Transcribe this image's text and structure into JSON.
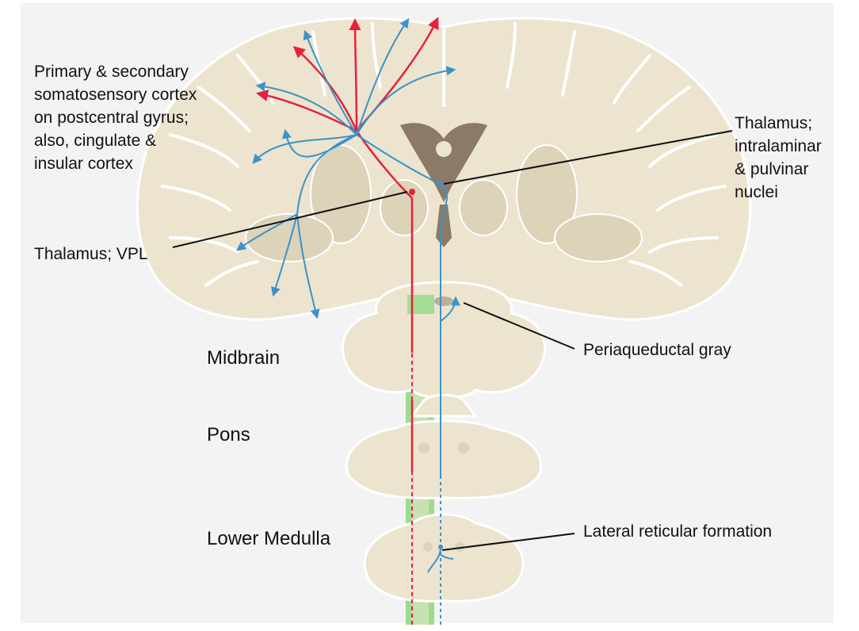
{
  "colors": {
    "background": "#f3f3f3",
    "tissue_fill": "#ece4cf",
    "tissue_outline": "#ffffff",
    "ventricle": "#8a7a67",
    "deep_nuclei": "#ddd3b9",
    "direct_pathway": "#e8203a",
    "indirect_pathway": "#3a93c8",
    "tract": "#9ddc8f",
    "leader_line": "#111111"
  },
  "labels": {
    "cortex": [
      "Primary & secondary",
      "somatosensory cortex",
      "on postcentral gyrus;",
      "also, cingulate &",
      "insular cortex"
    ],
    "thalamus_intralaminar": [
      "Thalamus;",
      "intralaminar",
      "& pulvinar",
      "nuclei"
    ],
    "thalamus_vpl": "Thalamus; VPL",
    "periaqueductal_gray": "Periaqueductal gray",
    "lateral_reticular_formation": "Lateral reticular formation",
    "midbrain": "Midbrain",
    "pons": "Pons",
    "lower_medulla": "Lower Medulla"
  }
}
